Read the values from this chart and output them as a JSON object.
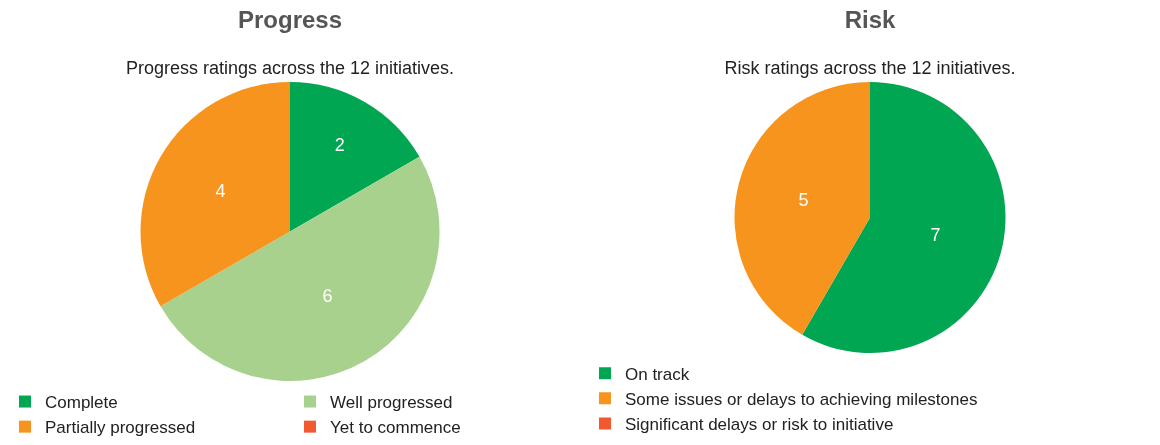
{
  "chart_data": [
    {
      "type": "pie",
      "title": "Progress",
      "subtitle": "Progress ratings across the 12 initiatives.",
      "categories": [
        "Complete",
        "Well progressed",
        "Partially progressed",
        "Yet to commence"
      ],
      "values": [
        2,
        6,
        4,
        0
      ],
      "value_labels": [
        "2",
        "6",
        "4",
        null
      ],
      "colors": [
        "#00a651",
        "#a9d18e",
        "#f7941d",
        "#f15a31"
      ],
      "legend": "bottom"
    },
    {
      "type": "pie",
      "title": "Risk",
      "subtitle": "Risk ratings across the 12 initiatives.",
      "categories": [
        "On track",
        "Some issues or delays to achieving milestones",
        "Significant delays or risk to initiative"
      ],
      "values": [
        7,
        5,
        0
      ],
      "value_labels": [
        "7",
        "5",
        null
      ],
      "colors": [
        "#00a651",
        "#f7941d",
        "#f15a31"
      ],
      "legend": "bottom"
    }
  ]
}
